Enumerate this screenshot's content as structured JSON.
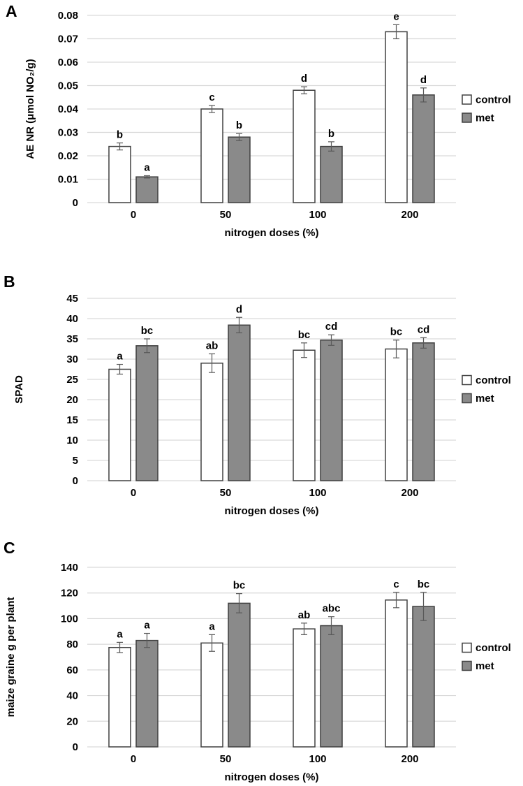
{
  "figure_title": "",
  "colors": {
    "control_fill": "#ffffff",
    "met_fill": "#8a8a8a",
    "bar_border": "#404040",
    "gridline": "#d9d9d9",
    "error_bar": "#595959",
    "text": "#000000"
  },
  "legend": {
    "entries": [
      "control",
      "met"
    ],
    "position": "right"
  },
  "chart_data": [
    {
      "type": "bar",
      "panel": "A",
      "title": "",
      "xlabel": "nitrogen doses (%)",
      "ylabel": "AE NR (μmol NO₂/g)",
      "categories": [
        "0",
        "50",
        "100",
        "200"
      ],
      "ylim": [
        0,
        0.08
      ],
      "ytick_values": [
        0,
        0.01,
        0.02,
        0.03,
        0.04,
        0.05,
        0.06,
        0.07,
        0.08
      ],
      "ytick_labels": [
        "0",
        "0.01",
        "0.02",
        "0.03",
        "0.04",
        "0.05",
        "0.06",
        "0.07",
        "0.08"
      ],
      "grid": "horizontal",
      "legend_position": "right",
      "series": [
        {
          "name": "control",
          "fill": "#ffffff",
          "values": [
            0.024,
            0.04,
            0.048,
            0.073
          ],
          "errors": [
            0.0015,
            0.0015,
            0.0015,
            0.003
          ],
          "letters": [
            "b",
            "c",
            "d",
            "e"
          ]
        },
        {
          "name": "met",
          "fill": "#8a8a8a",
          "values": [
            0.011,
            0.028,
            0.024,
            0.046
          ],
          "errors": [
            0.0005,
            0.0015,
            0.002,
            0.003
          ],
          "letters": [
            "a",
            "b",
            "b",
            "d"
          ]
        }
      ]
    },
    {
      "type": "bar",
      "panel": "B",
      "title": "",
      "xlabel": "nitrogen doses (%)",
      "ylabel": "SPAD",
      "categories": [
        "0",
        "50",
        "100",
        "200"
      ],
      "ylim": [
        0,
        45
      ],
      "ytick_values": [
        0,
        5,
        10,
        15,
        20,
        25,
        30,
        35,
        40,
        45
      ],
      "ytick_labels": [
        "0",
        "5",
        "10",
        "15",
        "20",
        "25",
        "30",
        "35",
        "40",
        "45"
      ],
      "grid": "horizontal",
      "legend_position": "right",
      "series": [
        {
          "name": "control",
          "fill": "#ffffff",
          "values": [
            27.5,
            29,
            32.2,
            32.5
          ],
          "errors": [
            1.2,
            2.3,
            1.8,
            2.2
          ],
          "letters": [
            "a",
            "ab",
            "bc",
            "bc"
          ]
        },
        {
          "name": "met",
          "fill": "#8a8a8a",
          "values": [
            33.3,
            38.4,
            34.7,
            34
          ],
          "errors": [
            1.7,
            1.9,
            1.3,
            1.3
          ],
          "letters": [
            "bc",
            "d",
            "cd",
            "cd"
          ]
        }
      ]
    },
    {
      "type": "bar",
      "panel": "C",
      "title": "",
      "xlabel": "nitrogen doses (%)",
      "ylabel": "maize graine g per plant",
      "categories": [
        "0",
        "50",
        "100",
        "200"
      ],
      "ylim": [
        0,
        140
      ],
      "ytick_values": [
        0,
        20,
        40,
        60,
        80,
        100,
        120,
        140
      ],
      "ytick_labels": [
        "0",
        "20",
        "40",
        "60",
        "80",
        "100",
        "120",
        "140"
      ],
      "grid": "horizontal",
      "legend_position": "right",
      "series": [
        {
          "name": "control",
          "fill": "#ffffff",
          "values": [
            77.5,
            81,
            92,
            114.5
          ],
          "errors": [
            4,
            6.5,
            4.5,
            6
          ],
          "letters": [
            "a",
            "a",
            "ab",
            "c"
          ]
        },
        {
          "name": "met",
          "fill": "#8a8a8a",
          "values": [
            83,
            112,
            94.5,
            109.5
          ],
          "errors": [
            5.5,
            7.5,
            7,
            11
          ],
          "letters": [
            "a",
            "bc",
            "abc",
            "bc"
          ]
        }
      ]
    }
  ]
}
